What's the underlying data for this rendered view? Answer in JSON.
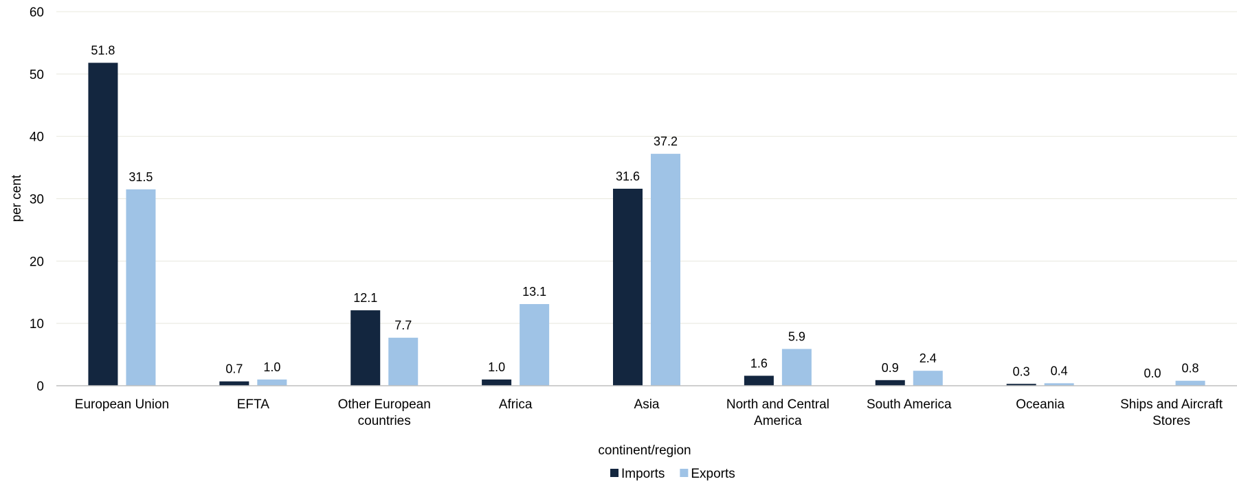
{
  "chart_data": {
    "type": "bar",
    "title": "",
    "xlabel": "continent/region",
    "ylabel": "per cent",
    "ylim": [
      0,
      60
    ],
    "yticks": [
      "0",
      "10",
      "20",
      "30",
      "40",
      "50",
      "60"
    ],
    "grid": true,
    "legend_position": "bottom",
    "categories": [
      [
        "European Union"
      ],
      [
        "EFTA"
      ],
      [
        "Other European",
        "countries"
      ],
      [
        "Africa"
      ],
      [
        "Asia"
      ],
      [
        "North and Central",
        "America"
      ],
      [
        "South America"
      ],
      [
        "Oceania"
      ],
      [
        "Ships and Aircraft",
        "Stores"
      ]
    ],
    "series": [
      {
        "name": "Imports",
        "color": "#13263f",
        "values": [
          51.8,
          0.7,
          12.1,
          1.0,
          31.6,
          1.6,
          0.9,
          0.3,
          0.0
        ],
        "labels": [
          "51.8",
          "0.7",
          "12.1",
          "1.0",
          "31.6",
          "1.6",
          "0.9",
          "0.3",
          "0.0"
        ]
      },
      {
        "name": "Exports",
        "color": "#9fc3e6",
        "values": [
          31.5,
          1.0,
          7.7,
          13.1,
          37.2,
          5.9,
          2.4,
          0.4,
          0.8
        ],
        "labels": [
          "31.5",
          "1.0",
          "7.7",
          "13.1",
          "37.2",
          "5.9",
          "2.4",
          "0.4",
          "0.8"
        ]
      }
    ]
  }
}
